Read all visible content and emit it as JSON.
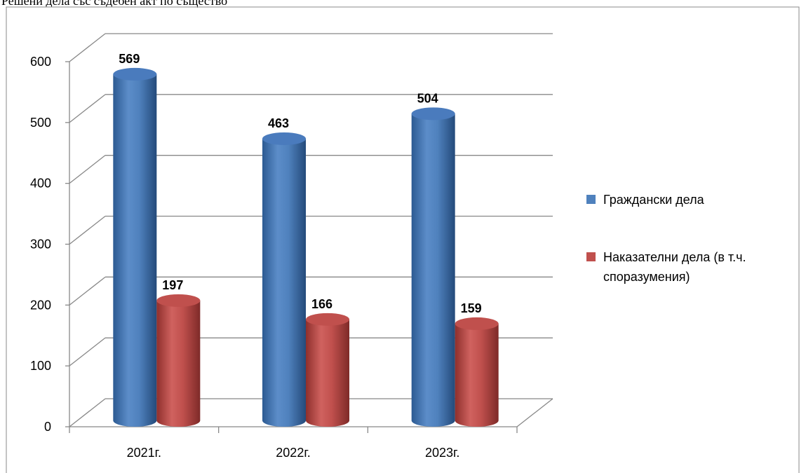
{
  "caption": "Решени дела със съдебен акт по същество",
  "chart_data": {
    "type": "bar",
    "title": "",
    "xlabel": "",
    "ylabel": "",
    "categories": [
      "2021г.",
      "2022г.",
      "2023г."
    ],
    "series": [
      {
        "name": "Граждански дела",
        "values": [
          569,
          463,
          504
        ],
        "color": "#4F81BD"
      },
      {
        "name": "Наказателни дела (в т.ч. споразумения)",
        "values": [
          197,
          166,
          159
        ],
        "color": "#C0504D"
      }
    ],
    "ylim": [
      0,
      600
    ],
    "yticks": [
      0,
      100,
      200,
      300,
      400,
      500,
      600
    ],
    "grid": true,
    "legend_position": "right",
    "legend_lines": [
      [
        "Граждански дела"
      ],
      [
        "Наказателни дела (в т.ч.",
        "споразумения)"
      ]
    ],
    "style": "3d-cylinder"
  }
}
